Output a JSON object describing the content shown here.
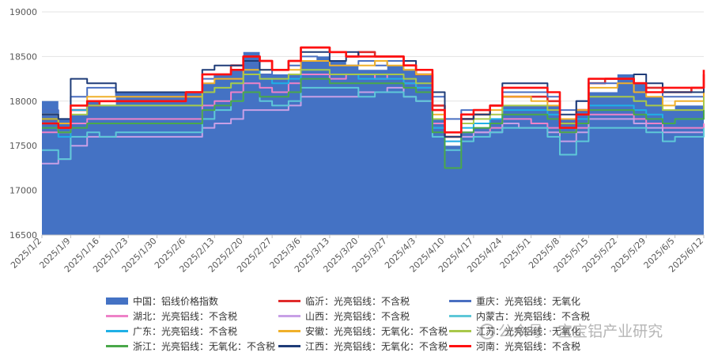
{
  "chart_data": {
    "type": "area",
    "xlabel": "",
    "ylabel": "",
    "ylim": [
      16500,
      19000
    ],
    "y_ticks": [
      16500,
      17000,
      17500,
      18000,
      18500,
      19000
    ],
    "x_ticks": [
      "2025/1/2",
      "2025/1/9",
      "2025/1/16",
      "2025/1/23",
      "2025/1/30",
      "2025/2/6",
      "2025/2/13",
      "2025/2/20",
      "2025/2/27",
      "2025/3/6",
      "2025/3/13",
      "2025/3/20",
      "2025/3/27",
      "2025/4/3",
      "2025/4/10",
      "2025/4/17",
      "2025/4/24",
      "2025/5/1",
      "2025/5/8",
      "2025/5/15",
      "2025/5/22",
      "2025/5/29",
      "2025/6/5",
      "2025/6/12"
    ],
    "x_dates": [
      "2025-01-02",
      "2025-01-06",
      "2025-01-09",
      "2025-01-13",
      "2025-01-16",
      "2025-01-20",
      "2025-01-23",
      "2025-02-06",
      "2025-02-10",
      "2025-02-13",
      "2025-02-17",
      "2025-02-20",
      "2025-02-24",
      "2025-02-27",
      "2025-03-03",
      "2025-03-06",
      "2025-03-10",
      "2025-03-13",
      "2025-03-17",
      "2025-03-20",
      "2025-03-24",
      "2025-03-27",
      "2025-03-31",
      "2025-04-03",
      "2025-04-07",
      "2025-04-10",
      "2025-04-14",
      "2025-04-17",
      "2025-04-21",
      "2025-04-24",
      "2025-04-28",
      "2025-05-01",
      "2025-05-05",
      "2025-05-08",
      "2025-05-12",
      "2025-05-15",
      "2025-05-19",
      "2025-05-22",
      "2025-05-26",
      "2025-05-29",
      "2025-06-02",
      "2025-06-05",
      "2025-06-09",
      "2025-06-12"
    ],
    "series": [
      {
        "name": "中国：铝线价格指数",
        "kind": "area",
        "color": "#4472c4",
        "values": [
          18000,
          17800,
          17850,
          18000,
          17950,
          18100,
          18100,
          18100,
          18200,
          18300,
          18350,
          18550,
          18300,
          18300,
          18300,
          18450,
          18500,
          18450,
          18400,
          18350,
          18350,
          18400,
          18350,
          18300,
          17800,
          17500,
          17650,
          17700,
          17800,
          17950,
          17950,
          17950,
          17950,
          17800,
          17900,
          18100,
          18100,
          18300,
          18200,
          18050,
          17900,
          17950,
          17950,
          18100
        ]
      },
      {
        "name": "临沂：光亮铝线：不含税",
        "kind": "line",
        "color": "#e02b2b",
        "values": [
          17800,
          17700,
          17900,
          17950,
          18000,
          18000,
          18000,
          18100,
          18300,
          18300,
          18400,
          18500,
          18450,
          18350,
          18450,
          18600,
          18600,
          18550,
          18500,
          18550,
          18500,
          18500,
          18400,
          18300,
          17950,
          17600,
          17800,
          17850,
          17950,
          18050,
          18050,
          18050,
          18000,
          17750,
          17900,
          18200,
          18250,
          18250,
          18200,
          18150,
          18100,
          18100,
          18150,
          18300
        ]
      },
      {
        "name": "重庆：光亮铝线：无氧化",
        "kind": "line",
        "color": "#4a6fc1",
        "values": [
          17900,
          17800,
          18050,
          18150,
          18150,
          18050,
          18050,
          18050,
          18250,
          18300,
          18300,
          18400,
          18300,
          18350,
          18400,
          18500,
          18450,
          18400,
          18400,
          18450,
          18400,
          18450,
          18350,
          18300,
          18050,
          17800,
          17900,
          17900,
          17950,
          18100,
          18100,
          18100,
          18050,
          17900,
          18000,
          18200,
          18200,
          18200,
          18200,
          18100,
          18050,
          18050,
          18050,
          18150
        ]
      },
      {
        "name": "湖北：光亮铝线：不含税",
        "kind": "line",
        "color": "#ee82c8",
        "values": [
          17650,
          17650,
          17750,
          17800,
          17800,
          17800,
          17800,
          17800,
          17950,
          18000,
          18100,
          18200,
          18150,
          18100,
          18200,
          18300,
          18300,
          18250,
          18300,
          18300,
          18250,
          18300,
          18200,
          18150,
          17750,
          17600,
          17650,
          17650,
          17700,
          17800,
          17800,
          17750,
          17700,
          17650,
          17700,
          17850,
          17850,
          17850,
          17800,
          17750,
          17700,
          17700,
          17700,
          17750
        ]
      },
      {
        "name": "山西：光亮铝线：不含税",
        "kind": "line",
        "color": "#c8a0e6",
        "values": [
          17300,
          17350,
          17500,
          17600,
          17600,
          17600,
          17600,
          17600,
          17700,
          17750,
          17800,
          17900,
          17900,
          17900,
          17950,
          18050,
          18050,
          18050,
          18050,
          18100,
          18100,
          18150,
          18050,
          18000,
          17700,
          17550,
          17600,
          17650,
          17650,
          17750,
          17700,
          17700,
          17650,
          17550,
          17650,
          17800,
          17800,
          17800,
          17750,
          17700,
          17650,
          17650,
          17650,
          17700
        ]
      },
      {
        "name": "内蒙古：光亮铝线：不含税",
        "kind": "line",
        "color": "#5ec8d8",
        "values": [
          17450,
          17350,
          17600,
          17650,
          17600,
          17650,
          17650,
          17650,
          17800,
          17900,
          18000,
          18100,
          18000,
          17950,
          18000,
          18150,
          18150,
          18150,
          18150,
          18050,
          18100,
          18100,
          18050,
          18000,
          17600,
          17450,
          17550,
          17600,
          17650,
          17700,
          17700,
          17700,
          17600,
          17400,
          17550,
          17700,
          17700,
          17700,
          17700,
          17650,
          17550,
          17600,
          17600,
          17700
        ]
      },
      {
        "name": "广东：光亮铝线：不含税",
        "kind": "line",
        "color": "#1fb0e6",
        "values": [
          17700,
          17600,
          17900,
          17950,
          17950,
          17950,
          17950,
          17950,
          18100,
          18150,
          18200,
          18350,
          18250,
          18200,
          18250,
          18350,
          18350,
          18300,
          18300,
          18250,
          18250,
          18250,
          18200,
          18150,
          17700,
          17550,
          17700,
          17750,
          17800,
          17900,
          17900,
          17900,
          17850,
          17700,
          17800,
          17950,
          17950,
          17950,
          17900,
          17850,
          17750,
          17800,
          17800,
          17900
        ]
      },
      {
        "name": "安徽：光亮铝线：无氧化：不含税",
        "kind": "line",
        "color": "#f0b02a",
        "values": [
          17850,
          17750,
          17950,
          18050,
          18050,
          18050,
          18050,
          18050,
          18200,
          18250,
          18250,
          18350,
          18350,
          18350,
          18350,
          18450,
          18450,
          18400,
          18400,
          18400,
          18450,
          18400,
          18350,
          18300,
          17850,
          17650,
          17800,
          17850,
          17900,
          18050,
          18050,
          18000,
          17950,
          17800,
          17900,
          18150,
          18150,
          18200,
          18100,
          18050,
          17950,
          18000,
          18000,
          18150
        ]
      },
      {
        "name": "江苏：光亮铝线：无氧化",
        "kind": "line",
        "color": "#a8c84a",
        "values": [
          17800,
          17650,
          17850,
          17950,
          17950,
          17950,
          17950,
          17950,
          18100,
          18150,
          18200,
          18300,
          18250,
          18250,
          18300,
          18350,
          18350,
          18300,
          18300,
          18300,
          18300,
          18300,
          18250,
          18200,
          17800,
          17600,
          17750,
          17800,
          17850,
          17950,
          17950,
          17950,
          17900,
          17750,
          17850,
          18050,
          18050,
          18050,
          18000,
          17950,
          17900,
          17900,
          17900,
          18050
        ]
      },
      {
        "name": "浙江：光亮铝线：无氧化：不含税",
        "kind": "line",
        "color": "#4aa84a",
        "values": [
          17700,
          17650,
          17700,
          17750,
          17750,
          17750,
          17750,
          17750,
          17900,
          17950,
          18000,
          18100,
          18050,
          18050,
          18100,
          18250,
          18250,
          18200,
          18200,
          18200,
          18200,
          18200,
          18150,
          18100,
          17650,
          17250,
          17650,
          17700,
          17750,
          17850,
          17850,
          17850,
          17800,
          17650,
          17750,
          17900,
          17900,
          17900,
          17850,
          17800,
          17750,
          17800,
          17800,
          17900
        ]
      },
      {
        "name": "江西：光亮铝线：无氧化：不含税",
        "kind": "line",
        "color": "#1f3c78",
        "values": [
          17850,
          17800,
          18250,
          18200,
          18200,
          18100,
          18100,
          18100,
          18350,
          18400,
          18400,
          18450,
          18350,
          18350,
          18450,
          18550,
          18550,
          18450,
          18550,
          18500,
          18500,
          18500,
          18450,
          18350,
          18100,
          17600,
          17800,
          17850,
          17950,
          18200,
          18200,
          18200,
          18100,
          17850,
          18000,
          18250,
          18250,
          18250,
          18300,
          18200,
          18100,
          18100,
          18100,
          18200
        ]
      },
      {
        "name": "河南：光亮铝线：不含税",
        "kind": "line",
        "color": "#ff1010",
        "values": [
          17750,
          17700,
          17950,
          18000,
          18000,
          18000,
          18000,
          18100,
          18300,
          18300,
          18350,
          18500,
          18450,
          18350,
          18450,
          18600,
          18600,
          18550,
          18500,
          18500,
          18500,
          18500,
          18400,
          18350,
          17900,
          17650,
          17850,
          17900,
          17950,
          18150,
          18150,
          18150,
          18100,
          17700,
          17850,
          18250,
          18250,
          18250,
          18200,
          18100,
          18150,
          18150,
          18150,
          18350
        ]
      }
    ]
  },
  "watermark_text": "公众号 · 宝宝铝产业研究"
}
